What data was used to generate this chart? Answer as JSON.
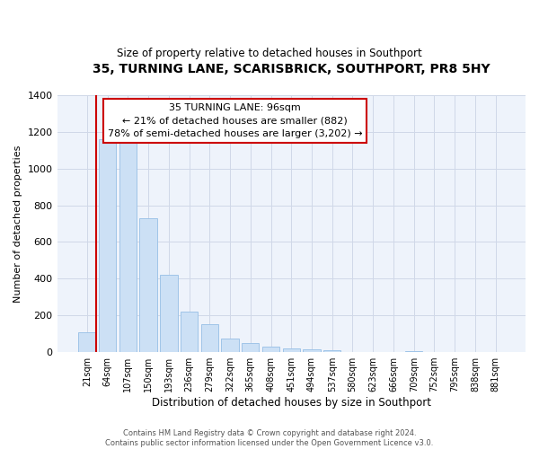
{
  "title": "35, TURNING LANE, SCARISBRICK, SOUTHPORT, PR8 5HY",
  "subtitle": "Size of property relative to detached houses in Southport",
  "xlabel": "Distribution of detached houses by size in Southport",
  "ylabel": "Number of detached properties",
  "footnote1": "Contains HM Land Registry data © Crown copyright and database right 2024.",
  "footnote2": "Contains public sector information licensed under the Open Government Licence v3.0.",
  "bar_labels": [
    "21sqm",
    "64sqm",
    "107sqm",
    "150sqm",
    "193sqm",
    "236sqm",
    "279sqm",
    "322sqm",
    "365sqm",
    "408sqm",
    "451sqm",
    "494sqm",
    "537sqm",
    "580sqm",
    "623sqm",
    "666sqm",
    "709sqm",
    "752sqm",
    "795sqm",
    "838sqm",
    "881sqm"
  ],
  "bar_values": [
    110,
    1160,
    1155,
    730,
    420,
    220,
    150,
    75,
    50,
    32,
    20,
    15,
    10,
    0,
    0,
    0,
    5,
    0,
    0,
    0,
    0
  ],
  "bar_color": "#cce0f5",
  "bar_edge_color": "#a0c4e8",
  "highlight_line_color": "#cc0000",
  "ylim": [
    0,
    1400
  ],
  "yticks": [
    0,
    200,
    400,
    600,
    800,
    1000,
    1200,
    1400
  ],
  "annotation_title": "35 TURNING LANE: 96sqm",
  "annotation_line1": "← 21% of detached houses are smaller (882)",
  "annotation_line2": "78% of semi-detached houses are larger (3,202) →",
  "red_line_bin_index": 1,
  "bar_width": 0.85,
  "grid_color": "#d0d8e8",
  "background_color": "#eef3fb"
}
